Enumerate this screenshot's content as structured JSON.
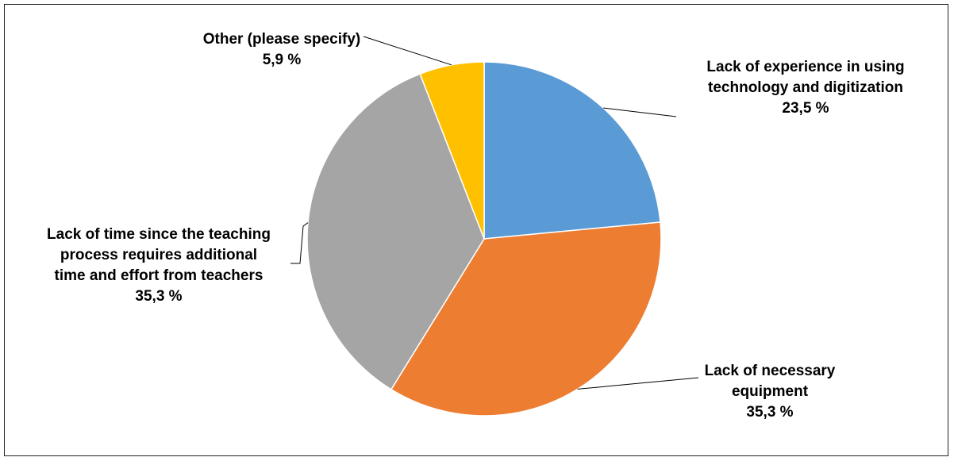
{
  "chart_data": {
    "type": "pie",
    "slices": [
      {
        "lines": [
          "Lack of experience in using",
          "technology and digitization"
        ],
        "value_label": "23,5 %",
        "value": 23.5,
        "color": "#5B9BD5"
      },
      {
        "lines": [
          "Lack of necessary",
          "equipment"
        ],
        "value_label": "35,3 %",
        "value": 35.3,
        "color": "#ED7D31"
      },
      {
        "lines": [
          "Lack of time since the teaching",
          "process requires additional",
          "time and effort from teachers"
        ],
        "value_label": "35,3 %",
        "value": 35.3,
        "color": "#A5A5A5"
      },
      {
        "lines": [
          "Other (please specify)"
        ],
        "value_label": "5,9 %",
        "value": 5.9,
        "color": "#FFC000"
      }
    ],
    "start_angle": "12 o'clock",
    "direction": "clockwise",
    "legend": "none"
  }
}
